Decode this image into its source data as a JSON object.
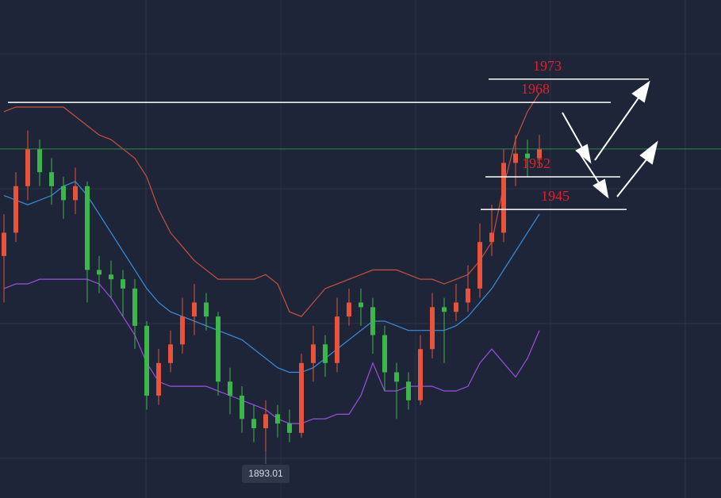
{
  "chart_data": {
    "type": "candlestick",
    "open": [
      1935,
      1940,
      1950,
      1958,
      1953,
      1950,
      1947,
      1950,
      1932,
      1931,
      1930,
      1928,
      1920,
      1905,
      1912,
      1916,
      1922,
      1925,
      1922,
      1908,
      1905,
      1900,
      1898,
      1901,
      1899,
      1897,
      1912,
      1916,
      1912,
      1922,
      1925,
      1924,
      1918,
      1910,
      1908,
      1904,
      1915,
      1924,
      1923,
      1925,
      1928,
      1938,
      1940,
      1955,
      1957,
      1956
    ],
    "high": [
      1944,
      1953,
      1962,
      1960,
      1956,
      1952,
      1954,
      1951,
      1935,
      1934,
      1932,
      1930,
      1921,
      1915,
      1919,
      1926,
      1929,
      1927,
      1923,
      1911,
      1907,
      1903,
      1904,
      1903,
      1902,
      1914,
      1920,
      1918,
      1926,
      1928,
      1928,
      1926,
      1920,
      1912,
      1910,
      1918,
      1927,
      1926,
      1929,
      1933,
      1942,
      1946,
      1958,
      1961,
      1960,
      1961
    ],
    "low": [
      1925,
      1938,
      1947,
      1950,
      1946,
      1943,
      1944,
      1925,
      1927,
      1926,
      1922,
      1915,
      1902,
      1903,
      1910,
      1914,
      1918,
      1919,
      1905,
      1901,
      1897,
      1895,
      1893.01,
      1896,
      1895,
      1896,
      1908,
      1909,
      1910,
      1920,
      1920,
      1914,
      1906,
      1900,
      1902,
      1903,
      1913,
      1912,
      1921,
      1923,
      1926,
      1935,
      1938,
      1950,
      1952,
      1954
    ],
    "close": [
      1940,
      1950,
      1958,
      1953,
      1950,
      1947,
      1950,
      1932,
      1931,
      1930,
      1928,
      1920,
      1905,
      1912,
      1916,
      1922,
      1925,
      1922,
      1908,
      1905,
      1900,
      1898,
      1901,
      1899,
      1897,
      1912,
      1916,
      1912,
      1922,
      1925,
      1924,
      1918,
      1910,
      1908,
      1904,
      1915,
      1924,
      1923,
      1925,
      1928,
      1938,
      1940,
      1955,
      1957,
      1956,
      1958
    ],
    "up_color": "#e8533c",
    "down_color": "#3cb54a",
    "series": [
      {
        "color": "#c8503c",
        "values": [
          1966,
          1967,
          1967,
          1967,
          1967,
          1967,
          1965,
          1963,
          1961,
          1960,
          1958,
          1956,
          1952,
          1945,
          1940,
          1937,
          1934,
          1932,
          1930,
          1930,
          1930,
          1930,
          1931,
          1929,
          1923,
          1922,
          1925,
          1928,
          1929,
          1930,
          1931,
          1932,
          1932,
          1932,
          1931,
          1930,
          1930,
          1929,
          1930,
          1931,
          1934,
          1938,
          1950,
          1960,
          1966,
          1970
        ]
      },
      {
        "color": "#3b8fe0",
        "values": [
          1948,
          1947,
          1946,
          1947,
          1948,
          1950,
          1951,
          1948,
          1944,
          1940,
          1936,
          1932,
          1928,
          1925,
          1923,
          1922,
          1921,
          1920,
          1919,
          1918,
          1917,
          1915,
          1913,
          1911,
          1910,
          1910,
          1911,
          1913,
          1915,
          1917,
          1919,
          1921,
          1921,
          1920,
          1919,
          1919,
          1919,
          1919,
          1920,
          1922,
          1925,
          1928,
          1932,
          1936,
          1940,
          1944
        ]
      },
      {
        "color": "#9b4fe0",
        "values": [
          1928,
          1929,
          1929,
          1930,
          1930,
          1930,
          1930,
          1930,
          1929,
          1926,
          1922,
          1918,
          1912,
          1908,
          1907,
          1907,
          1907,
          1907,
          1906,
          1905,
          1904,
          1903,
          1902,
          1900,
          1899,
          1899,
          1900,
          1900,
          1901,
          1901,
          1905,
          1912,
          1906,
          1906,
          1907,
          1907,
          1907,
          1906,
          1906,
          1907,
          1912,
          1915,
          1912,
          1909,
          1913,
          1919
        ]
      }
    ],
    "levels": [
      1973,
      1968,
      1952,
      1945
    ],
    "level_color": "#ffffff",
    "level_label_color": "#e0202a",
    "ylim": [
      1883,
      1990
    ]
  }
}
